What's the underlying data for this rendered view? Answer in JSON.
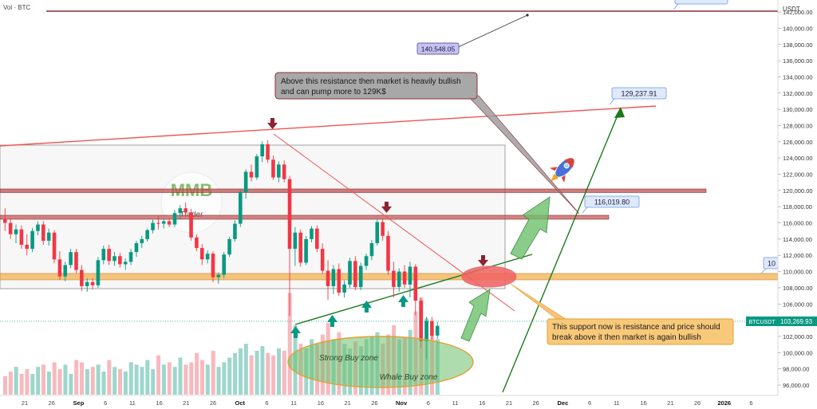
{
  "header": {
    "symbol_label": "Vol · BTC"
  },
  "axis": {
    "currency": "USDT",
    "y_ticks": [
      "142,000.00",
      "140,000.00",
      "138,000.00",
      "136,000.00",
      "134,000.00",
      "132,000.00",
      "130,000.00",
      "128,000.00",
      "126,000.00",
      "124,000.00",
      "122,000.00",
      "120,000.00",
      "118,000.00",
      "116,000.00",
      "114,000.00",
      "112,000.00",
      "110,000.00",
      "108,000.00",
      "106,000.00",
      "104,000.00",
      "102,000.00",
      "100,000.00",
      "98,000.00",
      "96,000.00"
    ],
    "y_tick_values": [
      142000,
      140000,
      138000,
      136000,
      134000,
      132000,
      130000,
      128000,
      126000,
      124000,
      122000,
      120000,
      118000,
      116000,
      114000,
      112000,
      110000,
      108000,
      106000,
      104000,
      102000,
      100000,
      98000,
      96000
    ],
    "x_ticks": [
      "21",
      "26",
      "Sep",
      "6",
      "11",
      "16",
      "21",
      "26",
      "Oct",
      "6",
      "11",
      "16",
      "21",
      "26",
      "Nov",
      "6",
      "11",
      "16",
      "21",
      "26",
      "Dec",
      "6",
      "11",
      "16",
      "21",
      "26",
      "2026",
      "6"
    ]
  },
  "price_tag": {
    "symbol": "BTCUSDT",
    "value": "103,269.93",
    "price": 103270,
    "color": "#089981"
  },
  "labels": {
    "target_high": "140,548.05",
    "target_129": "129,237.91",
    "level_116": "116,019.80",
    "level_108_partial": "10"
  },
  "annotations": {
    "resistance_note": "Above this resistance then market is heavily bullish and can pump more to 129K$",
    "support_note": "This support now is resistance and price should break above it then market is again bullish",
    "strong_buy_zone": "Strong Buy zone",
    "whale_buy_zone": "Whale Buy zone"
  },
  "logo": {
    "top_text": "MMB",
    "bottom_text": "Trader"
  },
  "colors": {
    "bull": "#089981",
    "bear": "#f23645",
    "resistance_line": "#f05454",
    "trend_green": "#1b7a1b"
  },
  "chart_data": {
    "type": "candlestick",
    "ylim": [
      95000,
      143500
    ],
    "candles": [
      [
        116500,
        117800,
        115000,
        116000
      ],
      [
        116000,
        116600,
        114000,
        114600
      ],
      [
        114600,
        115800,
        113500,
        115200
      ],
      [
        115200,
        115700,
        112800,
        113300
      ],
      [
        113300,
        114600,
        112000,
        112800
      ],
      [
        112800,
        115400,
        112400,
        115000
      ],
      [
        115000,
        116200,
        114500,
        115800
      ],
      [
        115800,
        116200,
        113300,
        113800
      ],
      [
        113800,
        115300,
        113200,
        114800
      ],
      [
        114800,
        115100,
        111000,
        111500
      ],
      [
        111500,
        112500,
        109000,
        109400
      ],
      [
        109400,
        111200,
        108800,
        110800
      ],
      [
        110800,
        112800,
        110400,
        112400
      ],
      [
        112400,
        112800,
        109800,
        110200
      ],
      [
        110200,
        110800,
        107600,
        108200
      ],
      [
        108200,
        109200,
        107500,
        108700
      ],
      [
        108700,
        109200,
        107800,
        108300
      ],
      [
        108300,
        111800,
        108000,
        111400
      ],
      [
        111400,
        113200,
        110900,
        112800
      ],
      [
        112800,
        113300,
        110800,
        111300
      ],
      [
        111300,
        112400,
        110700,
        111900
      ],
      [
        111900,
        112300,
        110500,
        110900
      ],
      [
        110900,
        111600,
        110200,
        111200
      ],
      [
        111200,
        112800,
        110800,
        112400
      ],
      [
        112400,
        113800,
        111800,
        113500
      ],
      [
        113500,
        114400,
        112900,
        114000
      ],
      [
        114000,
        115300,
        113700,
        115100
      ],
      [
        115100,
        116400,
        114700,
        116000
      ],
      [
        116000,
        116800,
        115200,
        115900
      ],
      [
        115900,
        116500,
        115300,
        116200
      ],
      [
        116200,
        116600,
        115500,
        115800
      ],
      [
        115800,
        117600,
        115500,
        117200
      ],
      [
        117200,
        118200,
        116500,
        117800
      ],
      [
        117800,
        118500,
        116900,
        117300
      ],
      [
        117300,
        117700,
        113800,
        114200
      ],
      [
        114200,
        114600,
        112500,
        112900
      ],
      [
        112900,
        113400,
        110800,
        111500
      ],
      [
        111500,
        112600,
        111000,
        112200
      ],
      [
        112200,
        112500,
        108700,
        109300
      ],
      [
        109300,
        109900,
        108500,
        109600
      ],
      [
        109600,
        112400,
        109200,
        112100
      ],
      [
        112100,
        114300,
        111800,
        114000
      ],
      [
        114000,
        116300,
        113700,
        115900
      ],
      [
        115900,
        120100,
        115500,
        119800
      ],
      [
        119800,
        122600,
        119000,
        122300
      ],
      [
        122300,
        123200,
        121100,
        121600
      ],
      [
        121600,
        124500,
        121300,
        124200
      ],
      [
        124200,
        126100,
        123500,
        125700
      ],
      [
        125700,
        126200,
        123400,
        123800
      ],
      [
        123800,
        124300,
        121300,
        121600
      ],
      [
        121600,
        123600,
        121000,
        123200
      ],
      [
        123200,
        123700,
        121000,
        121400
      ],
      [
        121400,
        121800,
        104500,
        112800
      ],
      [
        112800,
        115500,
        110700,
        114800
      ],
      [
        114800,
        115200,
        110600,
        111100
      ],
      [
        111100,
        114400,
        110800,
        114000
      ],
      [
        114000,
        115600,
        113600,
        115300
      ],
      [
        115300,
        115700,
        112400,
        112800
      ],
      [
        112800,
        113500,
        109700,
        110100
      ],
      [
        110100,
        111400,
        106500,
        108200
      ],
      [
        108200,
        110800,
        107200,
        110300
      ],
      [
        110300,
        111000,
        107000,
        107400
      ],
      [
        107400,
        108900,
        106800,
        108400
      ],
      [
        108400,
        111700,
        108000,
        111300
      ],
      [
        111300,
        111900,
        107700,
        108100
      ],
      [
        108100,
        111100,
        107700,
        110700
      ],
      [
        110700,
        112200,
        110200,
        111900
      ],
      [
        111900,
        113900,
        111400,
        113500
      ],
      [
        113500,
        116400,
        113200,
        116100
      ],
      [
        116100,
        116400,
        113800,
        114400
      ],
      [
        114400,
        115000,
        109600,
        110100
      ],
      [
        110100,
        111200,
        106800,
        108100
      ],
      [
        108100,
        110400,
        107500,
        110000
      ],
      [
        110000,
        110800,
        108000,
        108400
      ],
      [
        108400,
        111200,
        106800,
        110600
      ],
      [
        110600,
        110900,
        104600,
        106400
      ],
      [
        106400,
        106800,
        100600,
        101400
      ],
      [
        101400,
        104400,
        99200,
        103900
      ],
      [
        103900,
        104400,
        101600,
        102100
      ],
      [
        102100,
        103800,
        101700,
        103300
      ]
    ],
    "volumes": [
      8,
      10,
      12,
      9,
      11,
      9,
      12,
      13,
      10,
      14,
      11,
      13,
      9,
      15,
      14,
      11,
      12,
      13,
      10,
      15,
      12,
      11,
      10,
      14,
      13,
      12,
      15,
      11,
      17,
      13,
      14,
      12,
      16,
      13,
      14,
      18,
      15,
      13,
      19,
      12,
      14,
      16,
      18,
      20,
      22,
      17,
      19,
      21,
      18,
      17,
      20,
      19,
      44,
      30,
      22,
      20,
      24,
      22,
      26,
      31,
      24,
      27,
      22,
      20,
      23,
      21,
      24,
      25,
      27,
      22,
      26,
      30,
      24,
      25,
      28,
      36,
      42,
      33,
      26,
      24
    ],
    "resistance_zones": [
      {
        "low": 118700,
        "high": 119100
      },
      {
        "low": 115700,
        "high": 116100
      }
    ],
    "support_zone": {
      "low": 108300,
      "high": 109000
    },
    "range_box": {
      "low": 107300,
      "high": 124700
    },
    "target_line_value": 142200
  }
}
